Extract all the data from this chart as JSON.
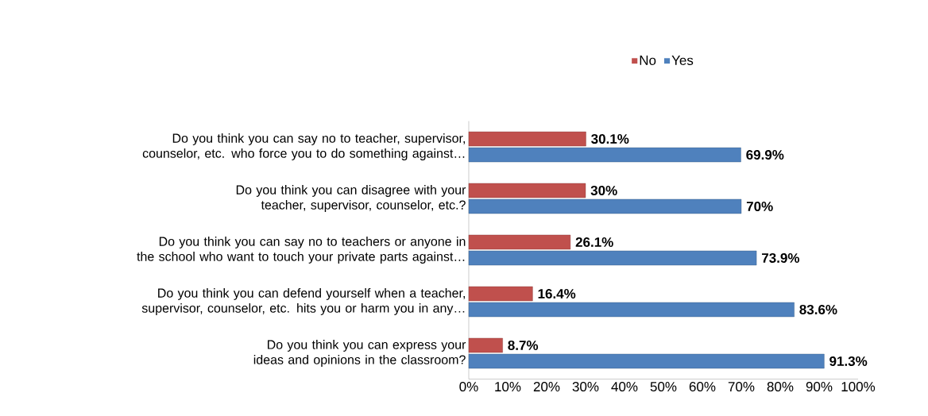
{
  "chart_data": {
    "type": "bar",
    "orientation": "horizontal",
    "categories": [
      "Do you think you can say no to teacher, supervisor, counselor, etc. who force you to do something against…",
      "Do you think you can disagree with your teacher, supervisor, counselor, etc.?",
      "Do you think you can say no to teachers or anyone in the school who want to touch your private parts against…",
      "Do you think you can defend yourself when a teacher, supervisor, counselor, etc. hits you or harm you in any…",
      "Do you think you can express your ideas and opinions in the classroom?"
    ],
    "series": [
      {
        "name": "No",
        "color": "#c0504d",
        "values": [
          30.1,
          30,
          26.1,
          16.4,
          8.7
        ],
        "value_labels": [
          "30.1%",
          "30%",
          "26.1%",
          "16.4%",
          "8.7%"
        ]
      },
      {
        "name": "Yes",
        "color": "#4f81bd",
        "values": [
          69.9,
          70,
          73.9,
          83.6,
          91.3
        ],
        "value_labels": [
          "69.9%",
          "70%",
          "73.9%",
          "83.6%",
          "91.3%"
        ]
      }
    ],
    "xlim": [
      0,
      100
    ],
    "xticks": [
      {
        "value": 0,
        "label": "0%"
      },
      {
        "value": 10,
        "label": "10%"
      },
      {
        "value": 20,
        "label": "20%"
      },
      {
        "value": 30,
        "label": "30%"
      },
      {
        "value": 40,
        "label": "40%"
      },
      {
        "value": 50,
        "label": "50%"
      },
      {
        "value": 60,
        "label": "60%"
      },
      {
        "value": 70,
        "label": "70%"
      },
      {
        "value": 80,
        "label": "80%"
      },
      {
        "value": 90,
        "label": "90%"
      },
      {
        "value": 100,
        "label": "100%"
      }
    ],
    "legend": "top"
  }
}
